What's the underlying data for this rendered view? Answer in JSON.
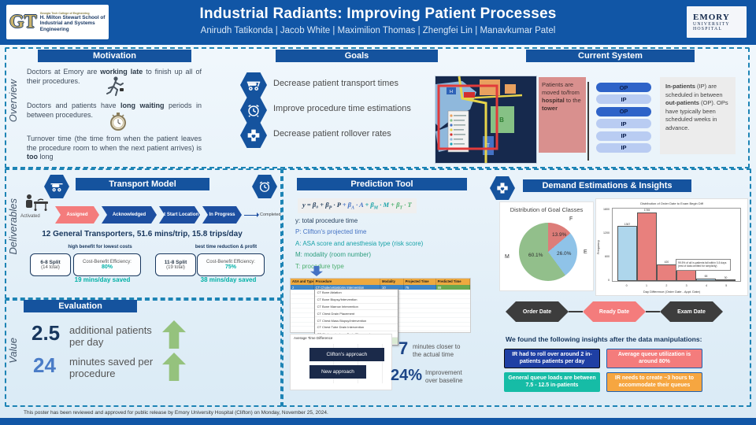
{
  "header": {
    "gt": {
      "monogram": "GT",
      "line1": "Georgia Tech College of Engineering",
      "line2": "H. Milton Stewart School of",
      "line3": "Industrial and Systems Engineering"
    },
    "title": "Industrial Radiants: Improving Patient Processes",
    "authors": "Anirudh Tatikonda | Jacob White | Maximilion Thomas | Zhengfei Lin | Manavkumar Patel",
    "emory": {
      "line1": "EMORY",
      "line2": "UNIVERSITY",
      "line3": "HOSPITAL"
    }
  },
  "side_labels": {
    "overview": "Overview",
    "deliverables": "Deliverables",
    "value": "Value"
  },
  "motivation": {
    "title": "Motivation",
    "p1": {
      "pre": "Doctors at Emory are ",
      "bold": "working late",
      "post": " to finish up all of their procedures."
    },
    "p2": {
      "pre": "Doctors and patients have ",
      "bold": "long waiting",
      "post": " periods in between procedures."
    },
    "p3": {
      "pre": "Turnover time (the time from when the patient leaves the procedure room to when the next patient arrives) is ",
      "bold": "too",
      "post": " long"
    }
  },
  "goals": {
    "title": "Goals",
    "items": [
      {
        "icon": "stretcher-icon",
        "label": "Decrease patient transport times"
      },
      {
        "icon": "alarm-clock-icon",
        "label": "Improve procedure time estimations"
      },
      {
        "icon": "medical-cross-icon",
        "label": "Decrease patient rollover rates"
      }
    ]
  },
  "current_system": {
    "title": "Current System",
    "map_note": {
      "pre": "Patients are moved to/from ",
      "bold1": "hospital",
      "mid": " to the ",
      "bold2": "tower"
    },
    "schedule": [
      "OP",
      "IP",
      "OP",
      "IP",
      "IP",
      "IP"
    ],
    "note": {
      "bold1": "In-patients",
      "t1": " (IP) are scheduled in between ",
      "bold2": "out-patients",
      "t2": " (OP). OPs have typically been scheduled weeks in advance."
    }
  },
  "transport": {
    "title": "Transport Model",
    "flow_start": "Activated",
    "flow_steps": [
      "Assigned",
      "Acknowledged",
      "At Start Location",
      "In Progress"
    ],
    "flow_end": "Completed",
    "stats": "12 General Transporters, 51.6 mins/trip, 15.8 trips/day",
    "options": [
      {
        "note": "high benefit for lowest costs",
        "split": "6-8 Split",
        "total": "(14 total)",
        "eff_label": "Cost-Benefit Efficiency:",
        "eff_value": "80%",
        "saved": "19 mins/day saved"
      },
      {
        "note": "best time reduction & profit",
        "split": "11-8 Split",
        "total": "(19 total)",
        "eff_label": "Cost-Benefit Efficiency:",
        "eff_value": "75%",
        "saved": "38 mins/day saved"
      }
    ]
  },
  "prediction": {
    "title": "Prediction Tool",
    "formula_parts": [
      {
        "text": "y = β₀ + βP · P",
        "color": "#27415e"
      },
      {
        "text": " + βA · A",
        "color": "#4472c4"
      },
      {
        "text": " + βM · M",
        "color": "#17a2a8"
      },
      {
        "text": " + βT · T",
        "color": "#4caf6e"
      }
    ],
    "legend": [
      {
        "text": "y: total procedure time",
        "color": "#27415e"
      },
      {
        "text": "P: Clifton's projected time",
        "color": "#4472c4"
      },
      {
        "text": "A: ASA score and anesthesia type (risk score)",
        "color": "#17a2a8"
      },
      {
        "text": "M: modality (room number)",
        "color": "#2d9e7f"
      },
      {
        "text": "T: procedure type",
        "color": "#4caf6e"
      }
    ],
    "sheet": {
      "headers": [
        "ASA and Type",
        "Procedure",
        "Modality",
        "Projected Time",
        "Predicted Time"
      ],
      "row": [
        "2",
        "CT Cholecystostomy Intervention",
        "10",
        "75",
        "88"
      ],
      "dropdown": [
        "CT Bone Ablation",
        "CT Bone Biopsy/Intervention",
        "CT Bone Marrow Intervention",
        "CT Chest Drain Placement",
        "CT Chest Mass Biopsy/Intervention",
        "CT Chest Tube Drain Intervention",
        "CT Cholecystostomy Drain Placement",
        "CT Cholecystostomy Intervention"
      ]
    },
    "stats": [
      {
        "value": "7",
        "label": "minutes closer to the actual time"
      },
      {
        "value": "24%",
        "label": "Improvement over baseline"
      }
    ]
  },
  "demand": {
    "title": "Demand Estimations & Insights",
    "flow": [
      "Order Date",
      "Ready Date",
      "Exam Date"
    ],
    "insights_intro": "We found the following insights after the data manipulations:",
    "insights": [
      {
        "text": "IR had to roll over around 2 in-patients patients per day",
        "bg": "#1e3fa4",
        "fg": "#ffffff",
        "border": "#0a0a0a"
      },
      {
        "text": "Average queue utilization is around 80%",
        "bg": "#f47c7c",
        "fg": "#ffffff",
        "border": "#1f5fae"
      },
      {
        "text": "General queue loads are between 7.5 - 12.5 in-patients",
        "bg": "#16bca6",
        "fg": "#ffffff",
        "border": "#16bca6"
      },
      {
        "text": "IR needs to create ~3 hours to accommodate their queues",
        "bg": "#f6a640",
        "fg": "#ffffff",
        "border": "#1f5fae"
      }
    ]
  },
  "evaluation": {
    "title": "Evaluation",
    "metrics": [
      {
        "value": "2.5",
        "label": "additional patients per day",
        "color": "#17365d"
      },
      {
        "value": "24",
        "label": "minutes saved per procedure",
        "color": "#4a7cc7"
      }
    ]
  },
  "footer": "This poster has been reviewed and approved for public release by Emory University Hospital (Clifton) on Monday, November 25, 2024.",
  "colors": {
    "header_navy": "#1156a6",
    "section_navy": "#15539e",
    "salmon": "#f47c7c",
    "teal": "#00b0a6",
    "dashed_border": "#1d84b5",
    "green_arrow": "#95c27d"
  },
  "chart_data": [
    {
      "type": "pie",
      "title": "Distribution of Goal Classes",
      "slices": [
        {
          "label": "F",
          "pct": 13.9,
          "display": "13.9%",
          "color": "#dd7d79"
        },
        {
          "label": "E",
          "pct": 26.0,
          "display": "26.0%",
          "color": "#8fc3e8"
        },
        {
          "label": "M",
          "pct": 60.1,
          "display": "60.1%",
          "color": "#92bf8b"
        }
      ],
      "legend_position": "outside"
    },
    {
      "type": "bar",
      "title": "Distribution of Order Date to Exam Begin Diff",
      "xlabel": "Day Difference (Order Date - Appt. Date)",
      "ylabel": "Frequency",
      "categories": [
        "0",
        "1",
        "2",
        "3",
        "4",
        "5"
      ],
      "values": [
        1367,
        1745,
        420,
        290,
        65,
        30
      ],
      "colors": [
        "#aed6ec",
        "#e8807d",
        "#e8807d",
        "#e8807d",
        "#aed6ec",
        "#aed6ec"
      ],
      "ylim": [
        0,
        1800
      ],
      "grid": false,
      "annotation": "99.5% of all in-patients fall within 0-5 days (rest of data omitted for simplicity)"
    },
    {
      "type": "bar",
      "orientation": "horizontal",
      "title": "Average Time Difference",
      "categories": [
        "Clifton's approach",
        "New approach"
      ],
      "values": [
        29,
        22
      ],
      "xlim": [
        0,
        30
      ],
      "bar_color": "#1b2a4a"
    }
  ]
}
